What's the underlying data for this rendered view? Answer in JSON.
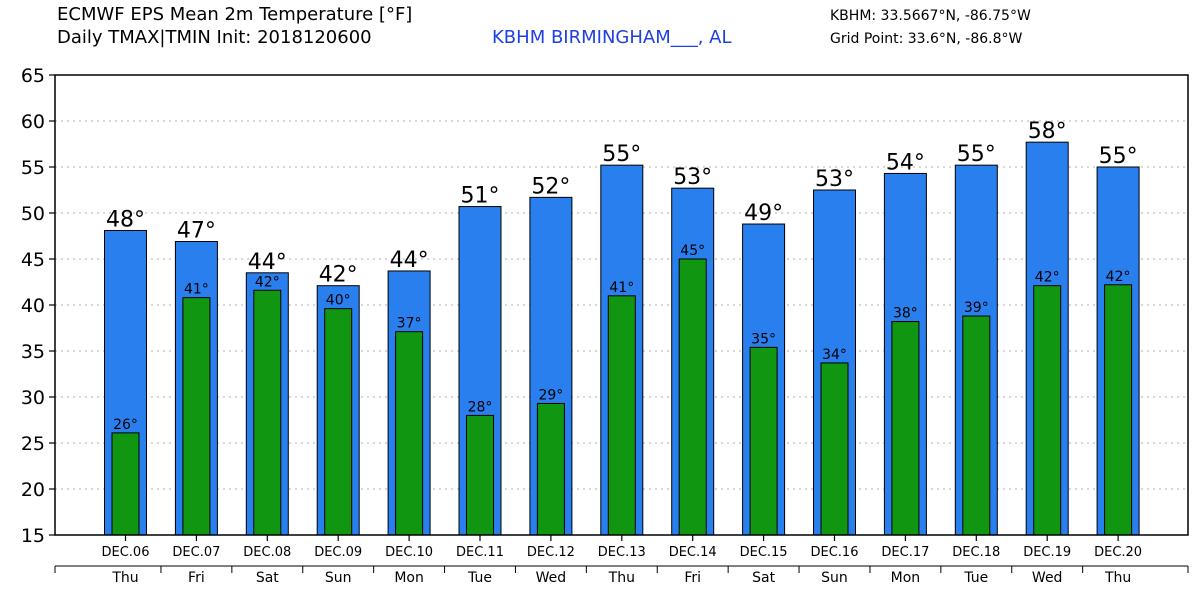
{
  "header": {
    "title_line1": "ECMWF EPS Mean 2m Temperature [°F]",
    "title_line2": "Daily TMAX|TMIN Init: 2018120600",
    "station": "KBHM BIRMINGHAM___, AL",
    "station_coords": "KBHM: 33.5667°N, -86.75°W",
    "grid_point": "Grid Point: 33.6°N, -86.8°W"
  },
  "colors": {
    "tmax_bar": "#2a7fef",
    "tmin_bar": "#119611",
    "grid": "#b0b0b0",
    "station_text": "#1f3fe0"
  },
  "chart_data": {
    "type": "bar",
    "title": "ECMWF EPS Mean 2m Temperature [°F]",
    "xlabel": "",
    "ylabel": "",
    "ylim": [
      15,
      65
    ],
    "yticks": [
      15,
      20,
      25,
      30,
      35,
      40,
      45,
      50,
      55,
      60,
      65
    ],
    "grid": true,
    "categories": [
      "DEC.06",
      "DEC.07",
      "DEC.08",
      "DEC.09",
      "DEC.10",
      "DEC.11",
      "DEC.12",
      "DEC.13",
      "DEC.14",
      "DEC.15",
      "DEC.16",
      "DEC.17",
      "DEC.18",
      "DEC.19",
      "DEC.20"
    ],
    "days": [
      "Thu",
      "Fri",
      "Sat",
      "Sun",
      "Mon",
      "Tue",
      "Wed",
      "Thu",
      "Fri",
      "Sat",
      "Sun",
      "Mon",
      "Tue",
      "Wed",
      "Thu"
    ],
    "series": [
      {
        "key": "tmax",
        "values": [
          48.1,
          46.9,
          43.5,
          42.1,
          43.7,
          50.7,
          51.7,
          55.2,
          52.7,
          48.8,
          52.5,
          54.3,
          55.2,
          57.7,
          55.0
        ],
        "labels": [
          "48°",
          "47°",
          "44°",
          "42°",
          "44°",
          "51°",
          "52°",
          "55°",
          "53°",
          "49°",
          "53°",
          "54°",
          "55°",
          "58°",
          "55°"
        ]
      },
      {
        "key": "tmin",
        "values": [
          26.1,
          40.8,
          41.6,
          39.6,
          37.1,
          28.0,
          29.3,
          41.0,
          45.0,
          35.4,
          33.7,
          38.2,
          38.8,
          42.1,
          42.2
        ],
        "labels": [
          "26°",
          "41°",
          "42°",
          "40°",
          "37°",
          "28°",
          "29°",
          "41°",
          "45°",
          "35°",
          "34°",
          "38°",
          "39°",
          "42°",
          "42°"
        ]
      }
    ]
  }
}
